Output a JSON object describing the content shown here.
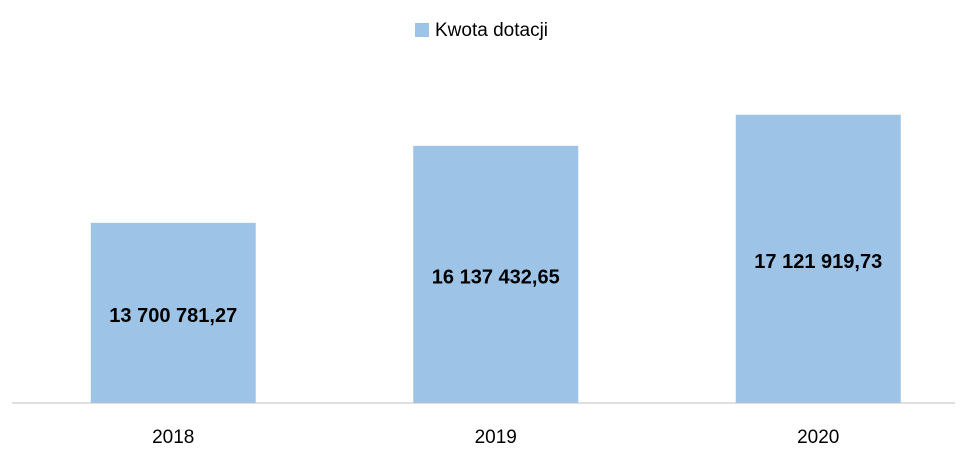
{
  "chart_data": {
    "type": "bar",
    "categories": [
      "2018",
      "2019",
      "2020"
    ],
    "series": [
      {
        "name": "Kwota dotacji",
        "color": "#9dc3e6",
        "values": [
          13700781.27,
          16137432.65,
          17121919.73
        ],
        "value_labels": [
          "13 700 781,27",
          "16 137 432,65",
          "17 121 919,73"
        ]
      }
    ],
    "ylim": [
      8000000,
      18000000
    ],
    "legend": "top"
  }
}
